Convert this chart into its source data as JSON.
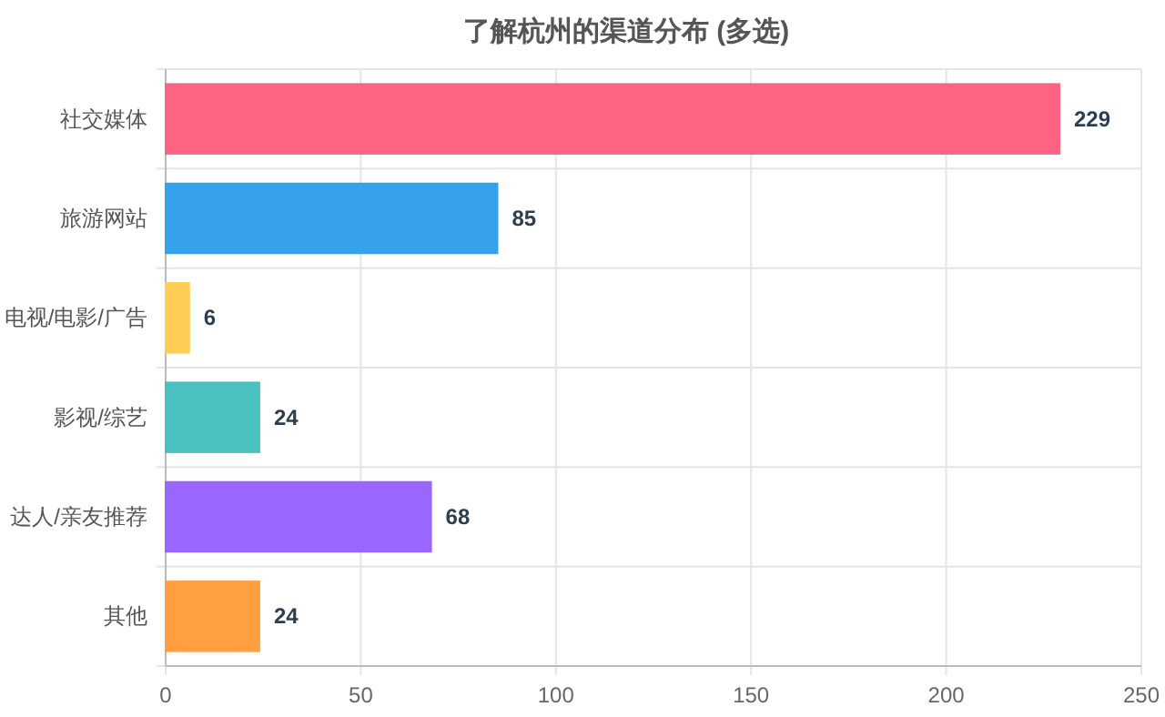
{
  "chart_data": {
    "type": "bar",
    "orientation": "horizontal",
    "title": "了解杭州的渠道分布 (多选)",
    "categories": [
      "社交媒体",
      "旅游网站",
      "电视/电影/广告",
      "影视/综艺",
      "达人/亲友推荐",
      "其他"
    ],
    "values": [
      229,
      85,
      6,
      24,
      68,
      24
    ],
    "colors": [
      "#ff6384",
      "#36a2eb",
      "#ffcd56",
      "#4bc0c0",
      "#9966ff",
      "#ff9f40"
    ],
    "xlim": [
      0,
      250
    ],
    "xticks": [
      0,
      50,
      100,
      150,
      200,
      250
    ],
    "grid": true,
    "data_labels": true
  }
}
